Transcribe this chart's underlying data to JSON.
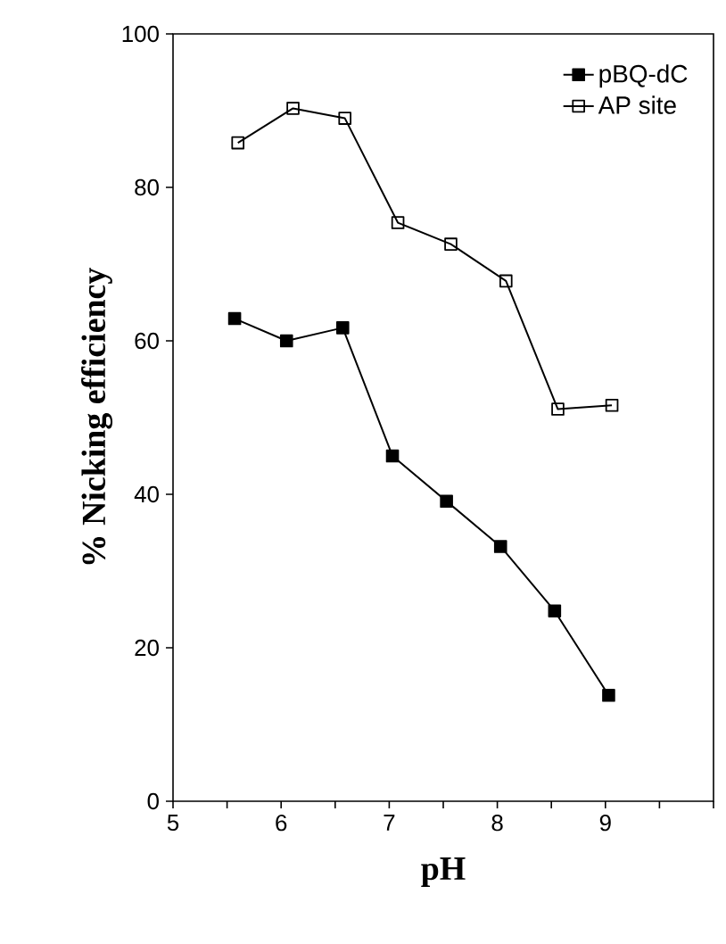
{
  "chart_data": {
    "type": "line",
    "xlabel": "pH",
    "ylabel": "% Nicking efficiency",
    "xlim": [
      5,
      10
    ],
    "ylim": [
      0,
      100
    ],
    "xticks": [
      5,
      {
        "value": 5.5,
        "label": null
      },
      6,
      {
        "value": 6.5,
        "label": null
      },
      7,
      {
        "value": 7.5,
        "label": null
      },
      8,
      {
        "value": 8.5,
        "label": null
      },
      9,
      {
        "value": 9.5,
        "label": null
      },
      {
        "value": 10,
        "label": null
      }
    ],
    "yticks": [
      0,
      20,
      40,
      60,
      80,
      100
    ],
    "legend": "top right",
    "grid": false,
    "line_style": "solid",
    "series": [
      {
        "name": "pBQ-dC",
        "color": "#000000",
        "marker": "square",
        "x": [
          5.57,
          6.05,
          6.57,
          7.03,
          7.53,
          8.03,
          8.53,
          9.03
        ],
        "values": [
          62.9,
          60.0,
          61.7,
          45.0,
          39.1,
          33.2,
          24.8,
          13.8
        ]
      },
      {
        "name": "AP site",
        "color": "#000000",
        "marker": "square",
        "x": [
          5.6,
          6.11,
          6.59,
          7.08,
          7.57,
          8.08,
          8.56,
          9.06
        ],
        "values": [
          85.8,
          90.3,
          89.0,
          75.4,
          72.6,
          67.8,
          51.1,
          51.6
        ]
      }
    ]
  }
}
